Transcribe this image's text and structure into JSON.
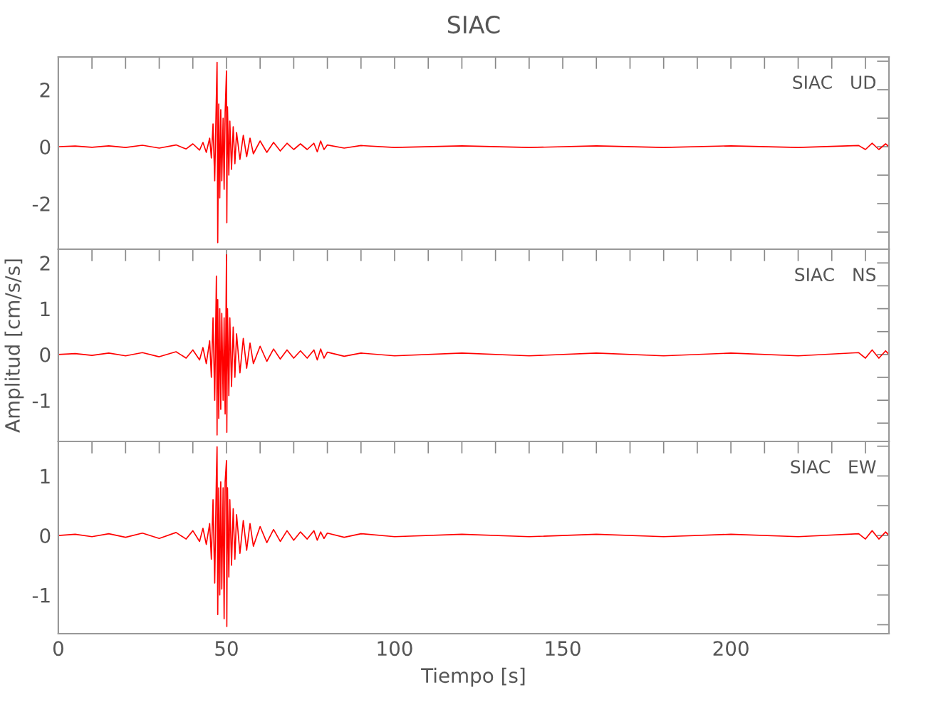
{
  "chart_data": [
    {
      "type": "line",
      "title": "SIAC",
      "annotations": [
        "SIAC   UD"
      ],
      "tick_labels": "y",
      "grid": false,
      "xlim": [
        0,
        247
      ],
      "ylim": [
        -3.6,
        3.15
      ],
      "xticks": [
        0,
        {
          "value": 10,
          "label": null
        },
        {
          "value": 20,
          "label": null
        },
        {
          "value": 30,
          "label": null
        },
        {
          "value": 40,
          "label": null
        },
        50,
        {
          "value": 60,
          "label": null
        },
        {
          "value": 70,
          "label": null
        },
        {
          "value": 80,
          "label": null
        },
        {
          "value": 90,
          "label": null
        },
        100,
        {
          "value": 110,
          "label": null
        },
        {
          "value": 120,
          "label": null
        },
        {
          "value": 130,
          "label": null
        },
        {
          "value": 140,
          "label": null
        },
        150,
        {
          "value": 160,
          "label": null
        },
        {
          "value": 170,
          "label": null
        },
        {
          "value": 180,
          "label": null
        },
        {
          "value": 190,
          "label": null
        },
        200,
        {
          "value": 210,
          "label": null
        },
        {
          "value": 220,
          "label": null
        },
        {
          "value": 230,
          "label": null
        },
        {
          "value": 240,
          "label": null
        }
      ],
      "yticks": [
        {
          "value": -3,
          "label": null
        },
        -2,
        {
          "value": -1,
          "label": null
        },
        0,
        {
          "value": 1,
          "label": null
        },
        2,
        {
          "value": 3,
          "label": null
        }
      ],
      "series": [
        {
          "color": "#ff0000",
          "x": [
            0,
            5,
            10,
            15,
            20,
            25,
            30,
            35,
            38,
            40,
            42,
            43,
            44,
            45,
            45.5,
            46,
            46.5,
            47,
            47.2,
            47.4,
            47.7,
            48,
            48.3,
            48.6,
            49,
            49.3,
            49.6,
            50,
            50.1,
            50.3,
            50.7,
            51,
            51.5,
            52,
            52.5,
            53,
            54,
            55,
            56,
            57,
            58,
            60,
            62,
            64,
            66,
            68,
            70,
            72,
            74,
            76,
            77,
            78,
            79,
            80,
            85,
            90,
            100,
            120,
            140,
            160,
            180,
            200,
            220,
            238,
            240,
            242,
            244,
            246,
            247
          ],
          "values": [
            0,
            0.02,
            -0.02,
            0.03,
            -0.03,
            0.05,
            -0.05,
            0.06,
            -0.08,
            0.1,
            -0.12,
            0.15,
            -0.2,
            0.3,
            -0.4,
            0.8,
            -1.2,
            1.8,
            2.96,
            -3.37,
            1.5,
            -1.8,
            1.3,
            -1.2,
            1.0,
            -1.5,
            1.2,
            2.66,
            -2.67,
            1.4,
            -1.0,
            0.9,
            -0.8,
            0.7,
            -0.6,
            0.5,
            -0.45,
            0.4,
            -0.35,
            0.3,
            -0.25,
            0.2,
            -0.2,
            0.15,
            -0.15,
            0.12,
            -0.1,
            0.1,
            -0.1,
            0.12,
            -0.18,
            0.2,
            -0.1,
            0.06,
            -0.05,
            0.04,
            -0.03,
            0.03,
            -0.03,
            0.03,
            -0.03,
            0.03,
            -0.03,
            0.04,
            -0.1,
            0.12,
            -0.1,
            0.1,
            0
          ]
        }
      ]
    },
    {
      "type": "line",
      "ylabel": "Amplitud [cm/s/s]",
      "annotations": [
        "SIAC   NS"
      ],
      "tick_labels": "y",
      "grid": false,
      "xlim": [
        0,
        247
      ],
      "ylim": [
        -1.9,
        2.3
      ],
      "xticks": [
        0,
        {
          "value": 10,
          "label": null
        },
        {
          "value": 20,
          "label": null
        },
        {
          "value": 30,
          "label": null
        },
        {
          "value": 40,
          "label": null
        },
        50,
        {
          "value": 60,
          "label": null
        },
        {
          "value": 70,
          "label": null
        },
        {
          "value": 80,
          "label": null
        },
        {
          "value": 90,
          "label": null
        },
        100,
        {
          "value": 110,
          "label": null
        },
        {
          "value": 120,
          "label": null
        },
        {
          "value": 130,
          "label": null
        },
        {
          "value": 140,
          "label": null
        },
        150,
        {
          "value": 160,
          "label": null
        },
        {
          "value": 170,
          "label": null
        },
        {
          "value": 180,
          "label": null
        },
        {
          "value": 190,
          "label": null
        },
        200,
        {
          "value": 210,
          "label": null
        },
        {
          "value": 220,
          "label": null
        },
        {
          "value": 230,
          "label": null
        },
        {
          "value": 240,
          "label": null
        }
      ],
      "yticks": [
        {
          "value": -1.5,
          "label": null
        },
        -1,
        {
          "value": -0.5,
          "label": null
        },
        0,
        {
          "value": 0.5,
          "label": null
        },
        1,
        {
          "value": 1.5,
          "label": null
        },
        2
      ],
      "series": [
        {
          "color": "#ff0000",
          "x": [
            0,
            5,
            10,
            15,
            20,
            25,
            30,
            35,
            38,
            40,
            42,
            43,
            44,
            45,
            45.5,
            46,
            46.5,
            47,
            47.2,
            47.4,
            47.7,
            48,
            48.3,
            48.6,
            49,
            49.3,
            49.6,
            50,
            50.1,
            50.3,
            50.7,
            51,
            51.5,
            52,
            52.5,
            53,
            54,
            55,
            56,
            57,
            58,
            60,
            62,
            64,
            66,
            68,
            70,
            72,
            74,
            76,
            77,
            78,
            79,
            80,
            85,
            90,
            100,
            120,
            140,
            160,
            180,
            200,
            220,
            238,
            240,
            242,
            244,
            246,
            247
          ],
          "values": [
            0,
            0.02,
            -0.02,
            0.03,
            -0.03,
            0.04,
            -0.05,
            0.06,
            -0.08,
            0.1,
            -0.12,
            0.15,
            -0.2,
            0.3,
            -0.5,
            0.8,
            -1.0,
            1.71,
            -1.76,
            1.2,
            -1.4,
            1.0,
            -1.2,
            0.9,
            -1.0,
            0.8,
            -1.3,
            2.18,
            -1.7,
            1.0,
            -0.9,
            0.8,
            -0.7,
            0.6,
            -0.5,
            0.45,
            -0.4,
            0.35,
            -0.3,
            0.25,
            -0.2,
            0.18,
            -0.15,
            0.12,
            -0.1,
            0.1,
            -0.08,
            0.08,
            -0.08,
            0.1,
            -0.12,
            0.12,
            -0.08,
            0.05,
            -0.04,
            0.03,
            -0.03,
            0.03,
            -0.03,
            0.03,
            -0.03,
            0.03,
            -0.03,
            0.04,
            -0.08,
            0.1,
            -0.08,
            0.08,
            0
          ]
        }
      ]
    },
    {
      "type": "line",
      "xlabel": "Tiempo [s]",
      "annotations": [
        "SIAC   EW"
      ],
      "grid": false,
      "xlim": [
        0,
        247
      ],
      "ylim": [
        -1.65,
        1.58
      ],
      "xticks": [
        0,
        {
          "value": 10,
          "label": null
        },
        {
          "value": 20,
          "label": null
        },
        {
          "value": 30,
          "label": null
        },
        {
          "value": 40,
          "label": null
        },
        50,
        {
          "value": 60,
          "label": null
        },
        {
          "value": 70,
          "label": null
        },
        {
          "value": 80,
          "label": null
        },
        {
          "value": 90,
          "label": null
        },
        100,
        {
          "value": 110,
          "label": null
        },
        {
          "value": 120,
          "label": null
        },
        {
          "value": 130,
          "label": null
        },
        {
          "value": 140,
          "label": null
        },
        150,
        {
          "value": 160,
          "label": null
        },
        {
          "value": 170,
          "label": null
        },
        {
          "value": 180,
          "label": null
        },
        {
          "value": 190,
          "label": null
        },
        200,
        {
          "value": 210,
          "label": null
        },
        {
          "value": 220,
          "label": null
        },
        {
          "value": 230,
          "label": null
        },
        {
          "value": 240,
          "label": null
        }
      ],
      "yticks": [
        {
          "value": -1.5,
          "label": null
        },
        -1,
        {
          "value": -0.5,
          "label": null
        },
        0,
        {
          "value": 0.5,
          "label": null
        },
        1,
        {
          "value": 1.5,
          "label": null
        }
      ],
      "series": [
        {
          "color": "#ff0000",
          "x": [
            0,
            5,
            10,
            15,
            20,
            25,
            30,
            35,
            38,
            40,
            42,
            43,
            44,
            45,
            45.5,
            46,
            46.5,
            47,
            47.2,
            47.4,
            47.7,
            48,
            48.3,
            48.6,
            49,
            49.3,
            49.6,
            50,
            50.1,
            50.3,
            50.7,
            51,
            51.5,
            52,
            52.5,
            53,
            54,
            55,
            56,
            57,
            58,
            60,
            62,
            64,
            66,
            68,
            70,
            72,
            74,
            76,
            77,
            78,
            79,
            80,
            85,
            90,
            100,
            120,
            140,
            160,
            180,
            200,
            220,
            238,
            240,
            242,
            244,
            246,
            247
          ],
          "values": [
            0,
            0.02,
            -0.02,
            0.03,
            -0.03,
            0.04,
            -0.05,
            0.05,
            -0.06,
            0.08,
            -0.1,
            0.12,
            -0.15,
            0.2,
            -0.4,
            0.6,
            -0.8,
            1.0,
            1.49,
            -1.33,
            0.8,
            -1.0,
            0.9,
            -0.9,
            0.8,
            -1.4,
            0.9,
            1.26,
            -1.53,
            0.8,
            -0.7,
            0.6,
            -0.5,
            0.45,
            -0.4,
            0.35,
            -0.3,
            0.25,
            -0.25,
            0.2,
            -0.18,
            0.15,
            -0.12,
            0.1,
            -0.1,
            0.08,
            -0.08,
            0.06,
            -0.06,
            0.08,
            -0.08,
            0.06,
            -0.05,
            0.04,
            -0.03,
            0.03,
            -0.02,
            0.02,
            -0.02,
            0.02,
            -0.02,
            0.02,
            -0.02,
            0.03,
            -0.06,
            0.08,
            -0.06,
            0.06,
            0
          ]
        }
      ]
    }
  ]
}
